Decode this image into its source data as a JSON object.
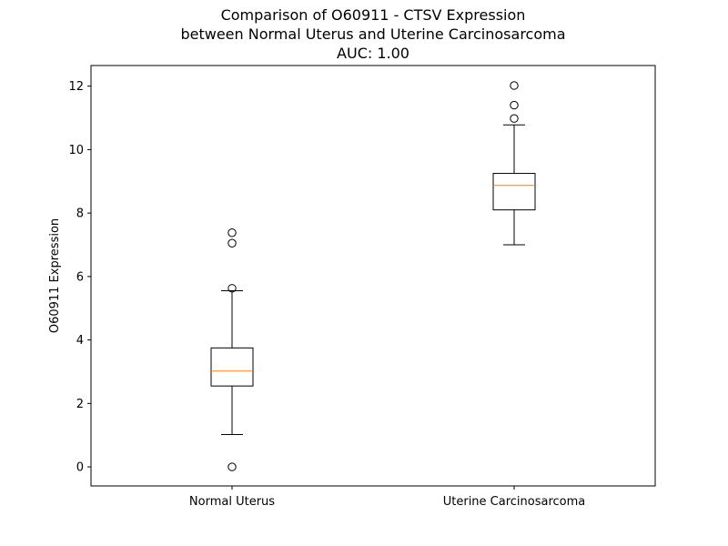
{
  "chart_data": {
    "type": "box",
    "title": "Comparison of O60911 - CTSV Expression\nbetween Normal Uterus and Uterine Carcinosarcoma\nAUC: 1.00",
    "title_lines": [
      "Comparison of O60911 - CTSV Expression",
      "between Normal Uterus and Uterine Carcinosarcoma",
      "AUC: 1.00"
    ],
    "xlabel": "",
    "ylabel": "O60911 Expression",
    "ylim": [
      -0.6,
      12.65
    ],
    "yticks": [
      0,
      2,
      4,
      6,
      8,
      10,
      12
    ],
    "ytick_labels": [
      "0",
      "2",
      "4",
      "6",
      "8",
      "10",
      "12"
    ],
    "grid": false,
    "categories": [
      "Normal Uterus",
      "Uterine Carcinosarcoma"
    ],
    "boxes": [
      {
        "category": "Normal Uterus",
        "whisker_low": 1.02,
        "q1": 2.55,
        "median": 3.02,
        "q3": 3.75,
        "whisker_high": 5.55,
        "outliers": [
          0.0,
          5.63,
          7.05,
          7.38
        ]
      },
      {
        "category": "Uterine Carcinosarcoma",
        "whisker_low": 7.0,
        "q1": 8.1,
        "median": 8.87,
        "q3": 9.25,
        "whisker_high": 10.78,
        "outliers": [
          10.98,
          11.4,
          12.02
        ]
      }
    ],
    "colors": {
      "box": "#000000",
      "median": "#ff7f0e",
      "outlier": "#000000"
    }
  }
}
